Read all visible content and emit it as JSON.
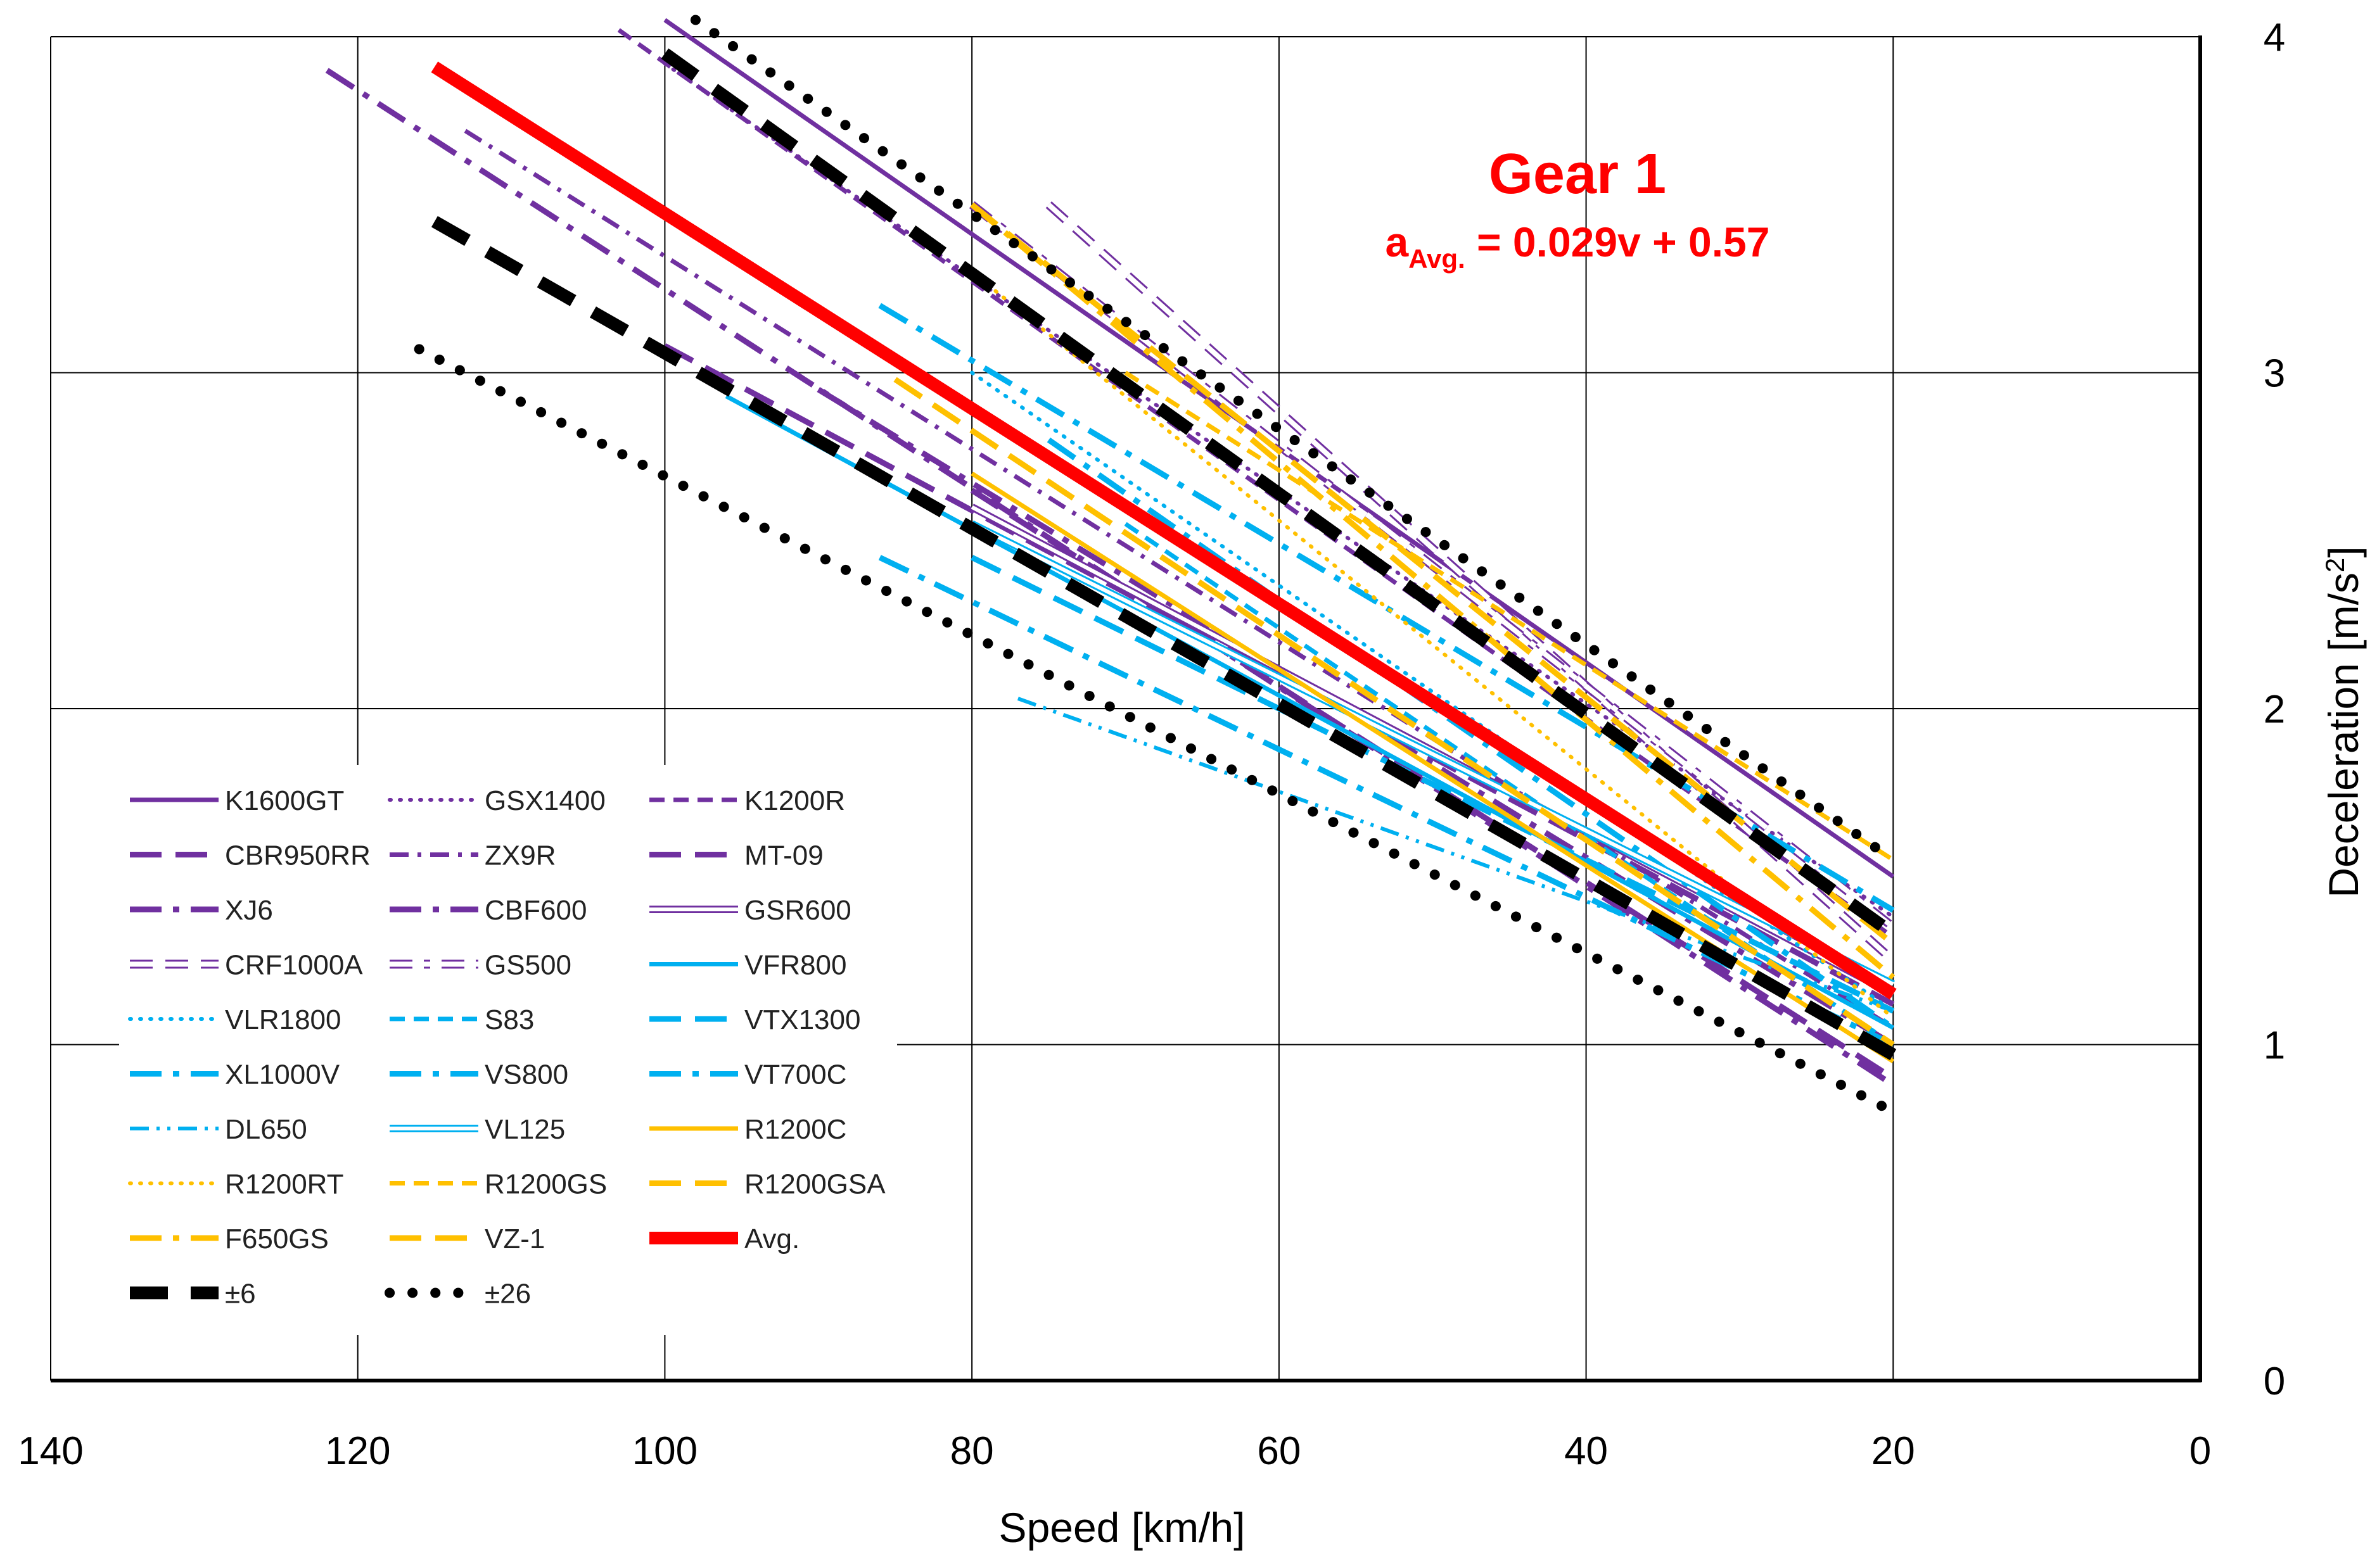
{
  "chart_data": {
    "type": "line",
    "xlabel": "Speed [km/h]",
    "ylabel": "Deceleration [m/s",
    "ylabel_sup": "2",
    "ylabel_close": "]",
    "xlim": [
      140,
      0
    ],
    "ylim": [
      0,
      4
    ],
    "x_reversed": true,
    "y_axis_side": "right",
    "xticks": [
      140,
      120,
      100,
      80,
      60,
      40,
      20,
      0
    ],
    "yticks": [
      0,
      1,
      2,
      3,
      4
    ],
    "grid": true,
    "legend_position": "lower-left",
    "annotation": {
      "title": "Gear 1",
      "eq_a": "a",
      "eq_sub": "Avg.",
      "eq_rest": " = 0.029v + 0.57"
    },
    "series": [
      {
        "name": "K1600GT",
        "color": "#7030a0",
        "style": "solid",
        "x": [
          100,
          20
        ],
        "y": [
          4.05,
          1.5
        ]
      },
      {
        "name": "GSX1400",
        "color": "#7030a0",
        "style": "dotted",
        "x": [
          100,
          20
        ],
        "y": [
          3.92,
          1.38
        ]
      },
      {
        "name": "K1200R",
        "color": "#7030a0",
        "style": "dashed",
        "x": [
          103,
          20
        ],
        "y": [
          4.02,
          1.32
        ]
      },
      {
        "name": "CBR950RR",
        "color": "#7030a0",
        "style": "longdash",
        "x": [
          100,
          20
        ],
        "y": [
          3.08,
          1.12
        ]
      },
      {
        "name": "ZX9R",
        "color": "#7030a0",
        "style": "dashdot",
        "x": [
          113,
          20
        ],
        "y": [
          3.72,
          1.05
        ]
      },
      {
        "name": "MT-09",
        "color": "#7030a0",
        "style": "longdash",
        "x": [
          80,
          20
        ],
        "y": [
          2.65,
          0.9
        ]
      },
      {
        "name": "XJ6",
        "color": "#7030a0",
        "style": "longdashdot",
        "x": [
          122,
          20
        ],
        "y": [
          3.9,
          0.88
        ]
      },
      {
        "name": "CBF600",
        "color": "#7030a0",
        "style": "longdashdot",
        "x": [
          90,
          20
        ],
        "y": [
          2.95,
          1.0
        ]
      },
      {
        "name": "GSR600",
        "color": "#7030a0",
        "style": "double",
        "x": [
          80,
          20
        ],
        "y": [
          2.6,
          1.15
        ]
      },
      {
        "name": "CRF1000A",
        "color": "#7030a0",
        "style": "hollow-dash",
        "x": [
          75,
          20
        ],
        "y": [
          3.5,
          1.25
        ]
      },
      {
        "name": "GS500",
        "color": "#7030a0",
        "style": "hollow-dashdot",
        "x": [
          80,
          20
        ],
        "y": [
          3.5,
          1.35
        ]
      },
      {
        "name": "VFR800",
        "color": "#00b0f0",
        "style": "solid",
        "x": [
          96,
          20
        ],
        "y": [
          2.93,
          1.05
        ]
      },
      {
        "name": "VLR1800",
        "color": "#00b0f0",
        "style": "dotted",
        "x": [
          80,
          20
        ],
        "y": [
          3.0,
          1.1
        ]
      },
      {
        "name": "S83",
        "color": "#00b0f0",
        "style": "dashed",
        "x": [
          70,
          20
        ],
        "y": [
          2.55,
          1.0
        ]
      },
      {
        "name": "VTX1300",
        "color": "#00b0f0",
        "style": "longdash",
        "x": [
          80,
          20
        ],
        "y": [
          2.45,
          1.1
        ]
      },
      {
        "name": "XL1000V",
        "color": "#00b0f0",
        "style": "longdashdot",
        "x": [
          86,
          20
        ],
        "y": [
          2.45,
          1.0
        ]
      },
      {
        "name": "VS800",
        "color": "#00b0f0",
        "style": "longdashdot",
        "x": [
          86,
          20
        ],
        "y": [
          3.2,
          1.4
        ]
      },
      {
        "name": "VT700C",
        "color": "#00b0f0",
        "style": "longdashdot",
        "x": [
          75,
          20
        ],
        "y": [
          2.8,
          1.05
        ]
      },
      {
        "name": "DL650",
        "color": "#00b0f0",
        "style": "dashdotdot",
        "x": [
          77,
          20
        ],
        "y": [
          2.03,
          1.1
        ]
      },
      {
        "name": "VL125",
        "color": "#00b0f0",
        "style": "double",
        "x": [
          80,
          20
        ],
        "y": [
          2.55,
          1.18
        ]
      },
      {
        "name": "R1200C",
        "color": "#ffc000",
        "style": "solid",
        "x": [
          80,
          20
        ],
        "y": [
          2.7,
          0.95
        ]
      },
      {
        "name": "R1200RT",
        "color": "#ffc000",
        "style": "dotted",
        "x": [
          80,
          20
        ],
        "y": [
          3.3,
          1.08
        ]
      },
      {
        "name": "R1200GS",
        "color": "#ffc000",
        "style": "dashed",
        "x": [
          70,
          20
        ],
        "y": [
          3.0,
          1.55
        ]
      },
      {
        "name": "R1200GSA",
        "color": "#ffc000",
        "style": "longdash",
        "x": [
          80,
          20
        ],
        "y": [
          3.5,
          1.3
        ]
      },
      {
        "name": "F650GS",
        "color": "#ffc000",
        "style": "longdashdot",
        "x": [
          80,
          20
        ],
        "y": [
          3.5,
          1.2
        ]
      },
      {
        "name": "VZ-1",
        "color": "#ffc000",
        "style": "longdash",
        "x": [
          85,
          20
        ],
        "y": [
          2.98,
          1.0
        ]
      },
      {
        "name": "Avg.",
        "color": "#ff0000",
        "style": "avg",
        "x": [
          115,
          20
        ],
        "y": [
          3.91,
          1.15
        ]
      },
      {
        "name": "±6",
        "color": "#000000",
        "style": "sigma",
        "x": [
          115,
          20
        ],
        "y": [
          3.45,
          0.97
        ],
        "x2": [
          100,
          20
        ],
        "y2": [
          3.95,
          1.33
        ]
      },
      {
        "name": "±26",
        "color": "#000000",
        "style": "sigma2",
        "x": [
          116,
          20
        ],
        "y": [
          3.07,
          0.8
        ],
        "x2": [
          98,
          20
        ],
        "y2": [
          4.05,
          1.55
        ]
      }
    ]
  }
}
